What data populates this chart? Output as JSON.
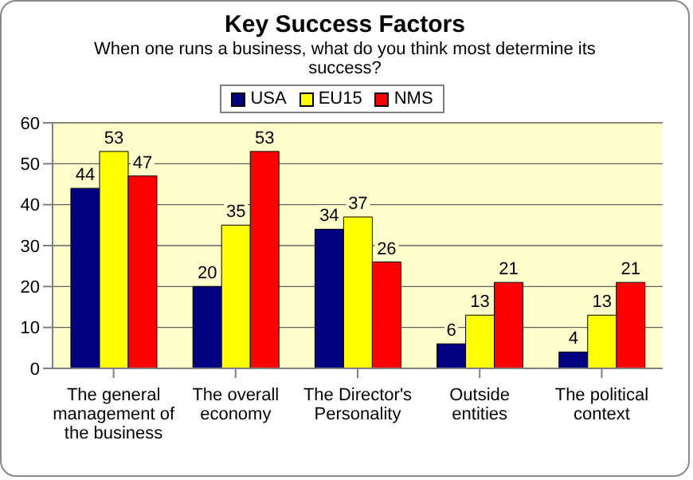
{
  "chart_data": {
    "type": "bar",
    "title": "Key Success Factors",
    "subtitle": "When one runs a business, what do you think most determine its success?",
    "categories": [
      "The general management of the business",
      "The overall economy",
      "The Director's Personality",
      "Outside entities",
      "The political context"
    ],
    "series": [
      {
        "name": "USA",
        "color": "#000080",
        "values": [
          44,
          20,
          34,
          6,
          4
        ]
      },
      {
        "name": "EU15",
        "color": "#ffff00",
        "values": [
          53,
          35,
          37,
          13,
          13
        ]
      },
      {
        "name": "NMS",
        "color": "#ff0000",
        "values": [
          47,
          53,
          26,
          21,
          21
        ]
      }
    ],
    "ylim": [
      0,
      60
    ],
    "yticks": [
      0,
      10,
      20,
      30,
      40,
      50,
      60
    ],
    "grid": "y",
    "legend": "top",
    "data_labels": true
  }
}
